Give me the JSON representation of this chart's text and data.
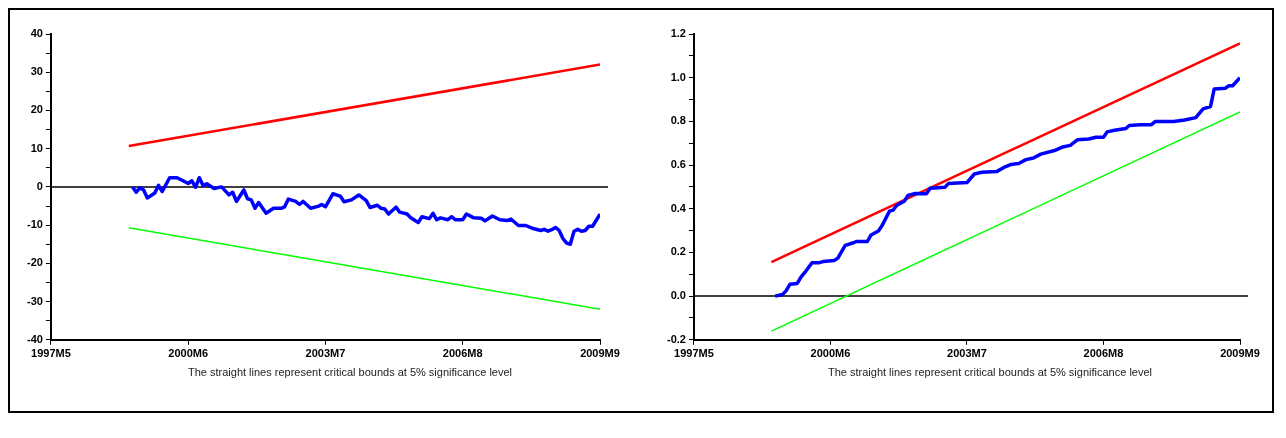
{
  "chart_data": [
    {
      "type": "line",
      "xlim": [
        "1997-05",
        "2009-09"
      ],
      "xticks": [
        {
          "value": "1997-05",
          "label": "1997M5"
        },
        {
          "value": "2000-06",
          "label": "2000M6"
        },
        {
          "value": "2003-07",
          "label": "2003M7"
        },
        {
          "value": "2006-08",
          "label": "2006M8"
        },
        {
          "value": "2009-09",
          "label": "2009M9"
        }
      ],
      "ylim": [
        -40,
        40
      ],
      "yticks": [
        -40,
        {
          "value": -35,
          "label": null
        },
        -30,
        {
          "value": -25,
          "label": null
        },
        -20,
        {
          "value": -15,
          "label": null
        },
        -10,
        {
          "value": -5,
          "label": null
        },
        0,
        {
          "value": 5,
          "label": null
        },
        10,
        {
          "value": 15,
          "label": null
        },
        20,
        {
          "value": 25,
          "label": null
        },
        30,
        {
          "value": 35,
          "label": null
        },
        40
      ],
      "grid": false,
      "legend": false,
      "marker": "none",
      "series": [
        {
          "color": "#0000ff",
          "x": [
            "1999-03",
            "1999-04",
            "1999-05",
            "1999-06",
            "1999-07",
            "1999-09",
            "1999-10",
            "1999-11",
            "2000-01",
            "2000-03",
            "2000-05",
            "2000-06",
            "2000-07",
            "2000-08",
            "2000-09",
            "2000-10",
            "2000-11",
            "2001-01",
            "2001-03",
            "2001-05",
            "2001-06",
            "2001-07",
            "2001-09",
            "2001-10",
            "2001-11",
            "2001-12",
            "2002-01",
            "2002-03",
            "2002-05",
            "2002-07",
            "2002-08",
            "2002-09",
            "2002-11",
            "2002-12",
            "2003-01",
            "2003-03",
            "2003-05",
            "2003-06",
            "2003-07",
            "2003-09",
            "2003-11",
            "2003-12",
            "2004-02",
            "2004-04",
            "2004-06",
            "2004-07",
            "2004-09",
            "2004-10",
            "2004-11",
            "2004-12",
            "2005-02",
            "2005-03",
            "2005-05",
            "2005-06",
            "2005-08",
            "2005-09",
            "2005-11",
            "2005-12",
            "2006-01",
            "2006-02",
            "2006-04",
            "2006-05",
            "2006-06",
            "2006-08",
            "2006-09",
            "2006-11",
            "2007-01",
            "2007-02",
            "2007-04",
            "2007-06",
            "2007-08",
            "2007-09",
            "2007-11",
            "2008-01",
            "2008-03",
            "2008-05",
            "2008-06",
            "2008-07",
            "2008-08",
            "2008-09",
            "2008-10",
            "2008-11",
            "2008-12",
            "2009-01",
            "2009-02",
            "2009-03",
            "2009-04",
            "2009-05",
            "2009-06",
            "2009-07",
            "2009-09"
          ],
          "values": [
            0,
            -1.4,
            -0.2,
            -0.8,
            -2.9,
            -1.6,
            0.4,
            -1.2,
            2.4,
            2.4,
            1.4,
            0.9,
            1.6,
            -0.1,
            2.4,
            0.4,
            0.8,
            -0.4,
            0,
            -2.1,
            -1.4,
            -3.8,
            -0.8,
            -3.1,
            -3.4,
            -5.6,
            -4.1,
            -6.9,
            -5.6,
            -5.6,
            -5.2,
            -3.2,
            -3.8,
            -4.6,
            -3.8,
            -5.6,
            -5.1,
            -4.6,
            -5.2,
            -1.8,
            -2.4,
            -3.9,
            -3.4,
            -2.1,
            -3.6,
            -5.4,
            -4.8,
            -5.6,
            -5.8,
            -7.1,
            -5.3,
            -6.6,
            -7.1,
            -8.1,
            -9.3,
            -7.8,
            -8.3,
            -6.9,
            -8.6,
            -8.1,
            -8.6,
            -7.8,
            -8.6,
            -8.6,
            -7.1,
            -8.1,
            -8.2,
            -8.9,
            -7.6,
            -8.6,
            -8.8,
            -8.4,
            -10.1,
            -10.1,
            -10.9,
            -11.4,
            -11.1,
            -11.6,
            -11.2,
            -10.6,
            -11.4,
            -13.5,
            -14.7,
            -15,
            -11.6,
            -11.1,
            -11.6,
            -11.4,
            -10.3,
            -10.3,
            -7.1
          ]
        },
        {
          "color": "#ff0000",
          "x": [
            "1999-02",
            "2009-09"
          ],
          "values": [
            10.7,
            32
          ]
        },
        {
          "color": "#00ff00",
          "x": [
            "1999-02",
            "2009-09"
          ],
          "values": [
            -10.7,
            -32
          ]
        }
      ],
      "ref_lines": [
        {
          "axis": "y",
          "value": 0,
          "color": "#000000"
        }
      ],
      "annotations": [
        "The straight lines represent critical bounds at 5% significance level"
      ]
    },
    {
      "type": "line",
      "xlim": [
        "1997-05",
        "2009-09"
      ],
      "xticks": [
        {
          "value": "1997-05",
          "label": "1997M5"
        },
        {
          "value": "2000-06",
          "label": "2000M6"
        },
        {
          "value": "2003-07",
          "label": "2003M7"
        },
        {
          "value": "2006-08",
          "label": "2006M8"
        },
        {
          "value": "2009-09",
          "label": "2009M9"
        }
      ],
      "ylim": [
        -0.2,
        1.2
      ],
      "yticks": [
        {
          "value": -0.2,
          "label": "-0.2"
        },
        {
          "value": -0.1,
          "label": null
        },
        {
          "value": 0,
          "label": "0.0"
        },
        {
          "value": 0.1,
          "label": null
        },
        0.2,
        {
          "value": 0.3,
          "label": null
        },
        0.4,
        {
          "value": 0.5,
          "label": null
        },
        0.6,
        {
          "value": 0.7,
          "label": null
        },
        0.8,
        {
          "value": 0.9,
          "label": null
        },
        {
          "value": 1,
          "label": "1.0"
        },
        {
          "value": 1.1,
          "label": null
        },
        1.2
      ],
      "grid": false,
      "legend": false,
      "marker": "none",
      "series": [
        {
          "color": "#0000ff",
          "x": [
            "1999-03",
            "1999-05",
            "1999-06",
            "1999-07",
            "1999-09",
            "1999-10",
            "1999-11",
            "2000-01",
            "2000-03",
            "2000-04",
            "2000-07",
            "2000-08",
            "2000-10",
            "2000-12",
            "2001-01",
            "2001-04",
            "2001-05",
            "2001-07",
            "2001-08",
            "2001-10",
            "2001-11",
            "2001-12",
            "2002-02",
            "2002-03",
            "2002-05",
            "2002-08",
            "2002-09",
            "2003-01",
            "2003-02",
            "2003-07",
            "2003-09",
            "2003-11",
            "2004-03",
            "2004-05",
            "2004-07",
            "2004-09",
            "2004-11",
            "2005-01",
            "2005-03",
            "2005-07",
            "2005-09",
            "2005-11",
            "2006-01",
            "2006-04",
            "2006-06",
            "2006-08",
            "2006-09",
            "2006-11",
            "2007-02",
            "2007-03",
            "2007-06",
            "2007-09",
            "2007-10",
            "2008-03",
            "2008-06",
            "2008-09",
            "2008-11",
            "2009-01",
            "2009-02",
            "2009-05",
            "2009-06",
            "2009-07",
            "2009-09"
          ],
          "values": [
            0,
            0.007,
            0.025,
            0.054,
            0.058,
            0.087,
            0.107,
            0.153,
            0.153,
            0.158,
            0.163,
            0.174,
            0.232,
            0.243,
            0.25,
            0.25,
            0.28,
            0.298,
            0.323,
            0.389,
            0.394,
            0.416,
            0.434,
            0.461,
            0.47,
            0.469,
            0.494,
            0.498,
            0.516,
            0.52,
            0.559,
            0.567,
            0.57,
            0.589,
            0.603,
            0.607,
            0.625,
            0.632,
            0.65,
            0.668,
            0.683,
            0.69,
            0.716,
            0.719,
            0.727,
            0.727,
            0.752,
            0.759,
            0.767,
            0.781,
            0.785,
            0.785,
            0.799,
            0.799,
            0.806,
            0.817,
            0.857,
            0.868,
            0.948,
            0.952,
            0.963,
            0.963,
            1.0
          ]
        },
        {
          "color": "#ff0000",
          "x": [
            "1999-02",
            "2009-09"
          ],
          "values": [
            0.156,
            1.157
          ]
        },
        {
          "color": "#00ff00",
          "x": [
            "1999-02",
            "2009-09"
          ],
          "values": [
            -0.16,
            0.843
          ]
        }
      ],
      "ref_lines": [
        {
          "axis": "y",
          "value": 0,
          "color": "#000000"
        }
      ],
      "annotations": [
        "The straight lines represent critical bounds at 5% significance level"
      ]
    }
  ]
}
